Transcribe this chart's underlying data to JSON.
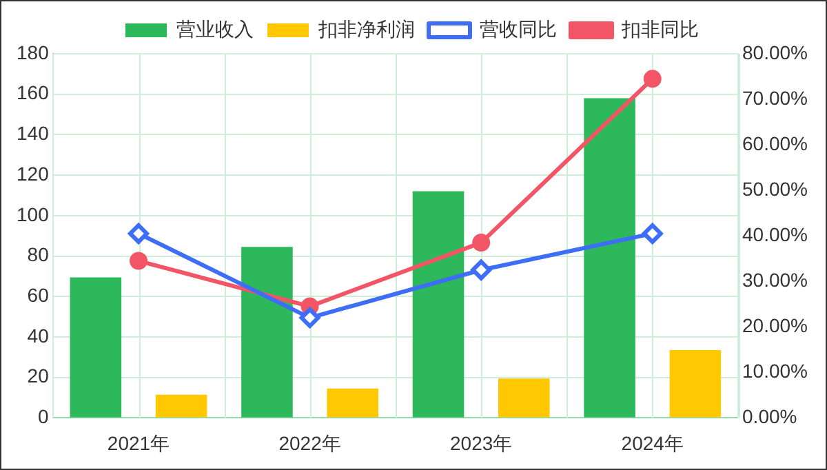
{
  "chart_data": {
    "type": "bar",
    "categories": [
      "2021年",
      "2022年",
      "2023年",
      "2024年"
    ],
    "series": [
      {
        "name": "营业收入",
        "color": "#2db85c",
        "values": [
          69.5,
          84.5,
          112,
          158
        ]
      },
      {
        "name": "扣非净利润",
        "color": "#ffc800",
        "values": [
          11.5,
          14.5,
          19.5,
          33.5
        ]
      },
      {
        "name": "营收同比",
        "type": "line",
        "axis": "y2",
        "marker": "diamond",
        "color": "#3d6ef5",
        "values": [
          40.5,
          22,
          32.5,
          40.5
        ]
      },
      {
        "name": "扣非同比",
        "type": "line",
        "axis": "y2",
        "marker": "circle",
        "color": "#f25566",
        "values": [
          34.5,
          24.5,
          38.5,
          74.5
        ]
      }
    ],
    "ylim": [
      0,
      180
    ],
    "yticks": [
      0,
      20,
      40,
      60,
      80,
      100,
      120,
      140,
      160,
      180
    ],
    "y2lim": [
      0,
      80
    ],
    "y2ticks": [
      {
        "value": 0,
        "label": "0.00%"
      },
      {
        "value": 10,
        "label": "10.00%"
      },
      {
        "value": 20,
        "label": "20.00%"
      },
      {
        "value": 30,
        "label": "30.00%"
      },
      {
        "value": 40,
        "label": "40.00%"
      },
      {
        "value": 50,
        "label": "50.00%"
      },
      {
        "value": 60,
        "label": "60.00%"
      },
      {
        "value": 70,
        "label": "70.00%"
      },
      {
        "value": 80,
        "label": "80.00%"
      }
    ],
    "grid": true,
    "legend": "top"
  }
}
